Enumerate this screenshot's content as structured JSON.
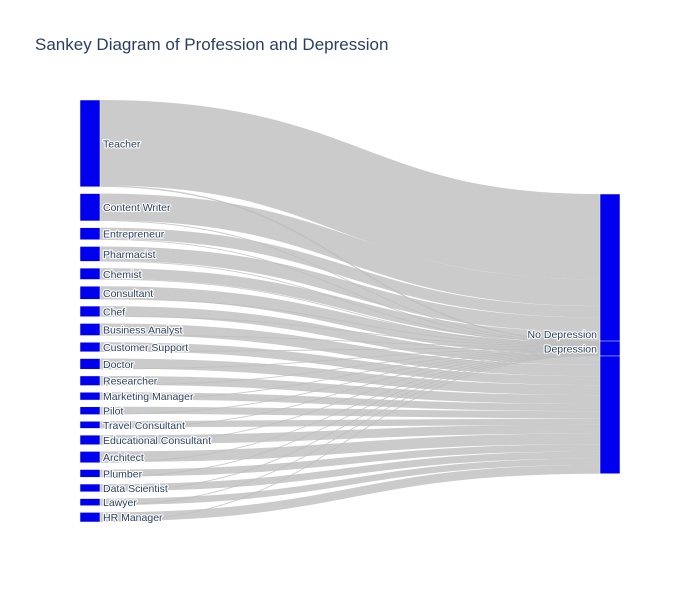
{
  "chart_data": {
    "type": "sankey",
    "title": "Sankey Diagram of Profession and Depression",
    "node_color": "#0000ee",
    "link_color": "#bdbdbd",
    "sources": [
      {
        "name": "Teacher",
        "no_depression": 24,
        "depression": 0.4
      },
      {
        "name": "Content Writer",
        "no_depression": 7.5,
        "depression": 0.2
      },
      {
        "name": "Entrepreneur",
        "no_depression": 3.2,
        "depression": 0.2
      },
      {
        "name": "Pharmacist",
        "no_depression": 4.0,
        "depression": 0.2
      },
      {
        "name": "Chemist",
        "no_depression": 3.0,
        "depression": 0.2
      },
      {
        "name": "Consultant",
        "no_depression": 3.5,
        "depression": 0.2
      },
      {
        "name": "Chef",
        "no_depression": 2.8,
        "depression": 0.2
      },
      {
        "name": "Business Analyst",
        "no_depression": 3.2,
        "depression": 0.2
      },
      {
        "name": "Customer Support",
        "no_depression": 2.5,
        "depression": 0.2
      },
      {
        "name": "Doctor",
        "no_depression": 2.8,
        "depression": 0.2
      },
      {
        "name": "Researcher",
        "no_depression": 2.5,
        "depression": 0.2
      },
      {
        "name": "Marketing Manager",
        "no_depression": 2.0,
        "depression": 0.2
      },
      {
        "name": "Pilot",
        "no_depression": 2.0,
        "depression": 0.2
      },
      {
        "name": "Travel Consultant",
        "no_depression": 1.8,
        "depression": 0.2
      },
      {
        "name": "Educational Consultant",
        "no_depression": 2.5,
        "depression": 0.2
      },
      {
        "name": "Architect",
        "no_depression": 3.0,
        "depression": 0.2
      },
      {
        "name": "Plumber",
        "no_depression": 2.0,
        "depression": 0.2
      },
      {
        "name": "Data Scientist",
        "no_depression": 2.0,
        "depression": 0.2
      },
      {
        "name": "Lawyer",
        "no_depression": 1.8,
        "depression": 0.2
      },
      {
        "name": "HR Manager",
        "no_depression": 2.5,
        "depression": 0.2
      }
    ],
    "targets": [
      "No Depression",
      "Depression"
    ]
  }
}
